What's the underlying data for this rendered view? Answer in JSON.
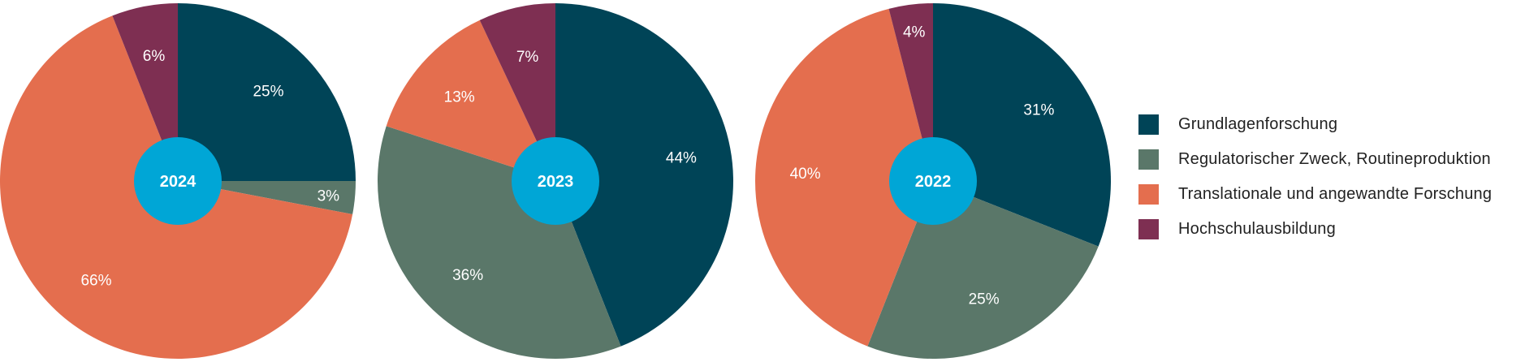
{
  "colors": {
    "grundlagen": "#004457",
    "regulatorisch": "#5a7769",
    "translational": "#e46e4e",
    "hochschul": "#7e2f52",
    "center": "#00a6d6"
  },
  "legend": {
    "items": [
      {
        "label": "Grundlagenforschung",
        "color": "#004457"
      },
      {
        "label": "Regulatorischer Zweck, Routineproduktion",
        "color": "#5a7769"
      },
      {
        "label": "Translationale und angewandte Forschung",
        "color": "#e46e4e"
      },
      {
        "label": "Hochschulausbildung",
        "color": "#7e2f52"
      }
    ]
  },
  "chart_data": [
    {
      "type": "pie",
      "center_label": "2024",
      "categories": [
        "Grundlagenforschung",
        "Regulatorischer Zweck, Routineproduktion",
        "Translationale und angewandte Forschung",
        "Hochschulausbildung"
      ],
      "values": [
        25,
        3,
        66,
        6
      ],
      "value_labels": [
        "25%",
        "3%",
        "66%",
        "6%"
      ]
    },
    {
      "type": "pie",
      "center_label": "2023",
      "categories": [
        "Grundlagenforschung",
        "Regulatorischer Zweck, Routineproduktion",
        "Translationale und angewandte Forschung",
        "Hochschulausbildung"
      ],
      "values": [
        44,
        36,
        13,
        7
      ],
      "value_labels": [
        "44%",
        "36%",
        "13%",
        "7%"
      ]
    },
    {
      "type": "pie",
      "center_label": "2022",
      "categories": [
        "Grundlagenforschung",
        "Regulatorischer Zweck, Routineproduktion",
        "Translationale und angewandte Forschung",
        "Hochschulausbildung"
      ],
      "values": [
        31,
        25,
        40,
        4
      ],
      "value_labels": [
        "31%",
        "25%",
        "40%",
        "4%"
      ]
    }
  ]
}
